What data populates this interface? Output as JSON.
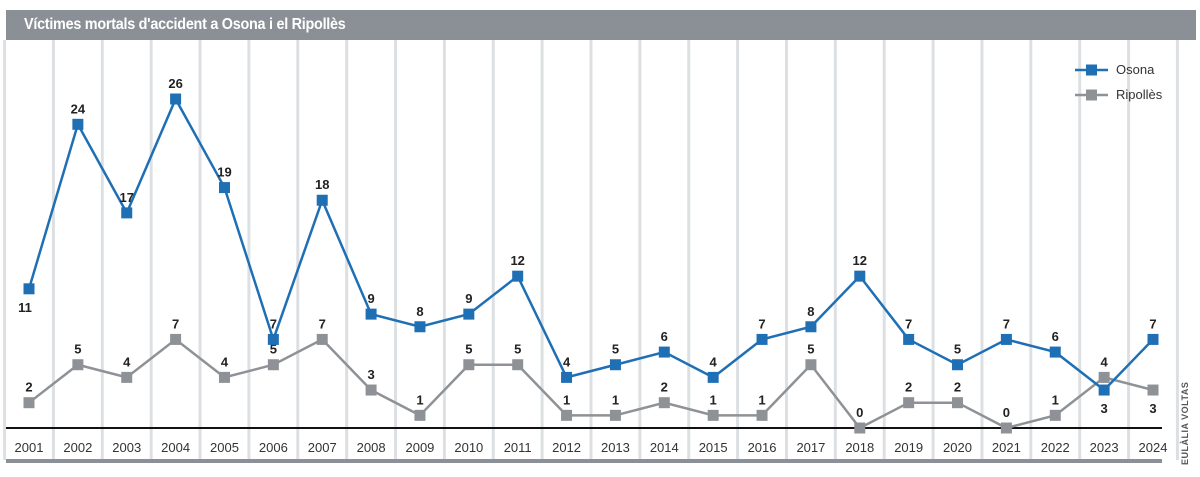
{
  "chart_data": {
    "type": "line",
    "title": "Víctimes mortals d'accident a Osona i el Ripollès",
    "xlabel": "",
    "ylabel": "",
    "ylim": [
      0,
      26
    ],
    "grid": "vertical",
    "legend_position": "top-right",
    "categories": [
      "2001",
      "2002",
      "2003",
      "2004",
      "2005",
      "2006",
      "2007",
      "2008",
      "2009",
      "2010",
      "2011",
      "2012",
      "2013",
      "2014",
      "2015",
      "2016",
      "2017",
      "2018",
      "2019",
      "2020",
      "2021",
      "2022",
      "2023",
      "2024"
    ],
    "series": [
      {
        "name": "Osona",
        "color": "#1f6fb5",
        "values": [
          11,
          24,
          17,
          26,
          19,
          7,
          18,
          9,
          8,
          9,
          12,
          4,
          5,
          6,
          4,
          7,
          8,
          12,
          7,
          5,
          7,
          6,
          3,
          7
        ]
      },
      {
        "name": "Ripollès",
        "color": "#8e9296",
        "values": [
          2,
          5,
          4,
          7,
          4,
          5,
          7,
          3,
          1,
          5,
          5,
          1,
          1,
          2,
          1,
          1,
          5,
          0,
          2,
          2,
          0,
          1,
          4,
          3
        ]
      }
    ]
  },
  "credit": "EULÀLIA VOLTAS"
}
